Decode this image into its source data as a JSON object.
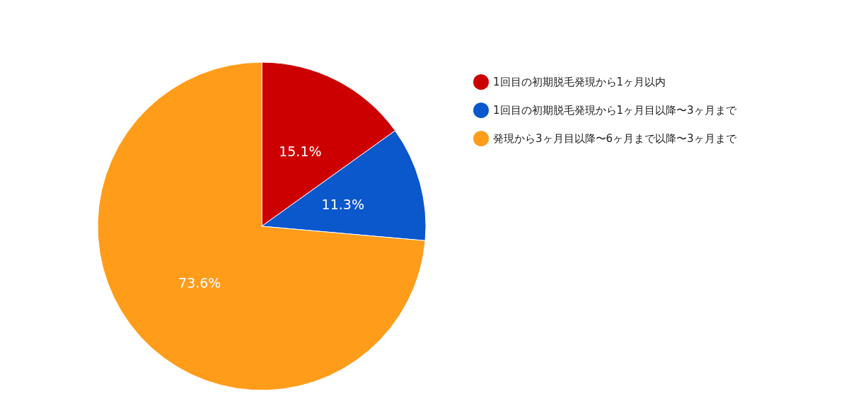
{
  "chart_data": {
    "type": "pie",
    "categories": [
      "1回目の初期脱毛発現から1ヶ月以内",
      "1回目の初期脱毛発現から1ヶ月目以降〜3ヶ月まで",
      "発現から3ヶ月目以降〜6ヶ月まで以降〜3ヶ月まで"
    ],
    "values": [
      15.1,
      11.3,
      73.6
    ],
    "colors": [
      "#cc0000",
      "#0b57cc",
      "#ff9c1a"
    ],
    "value_labels": [
      "15.1%",
      "11.3%",
      "73.6%"
    ],
    "legend": "top right"
  }
}
